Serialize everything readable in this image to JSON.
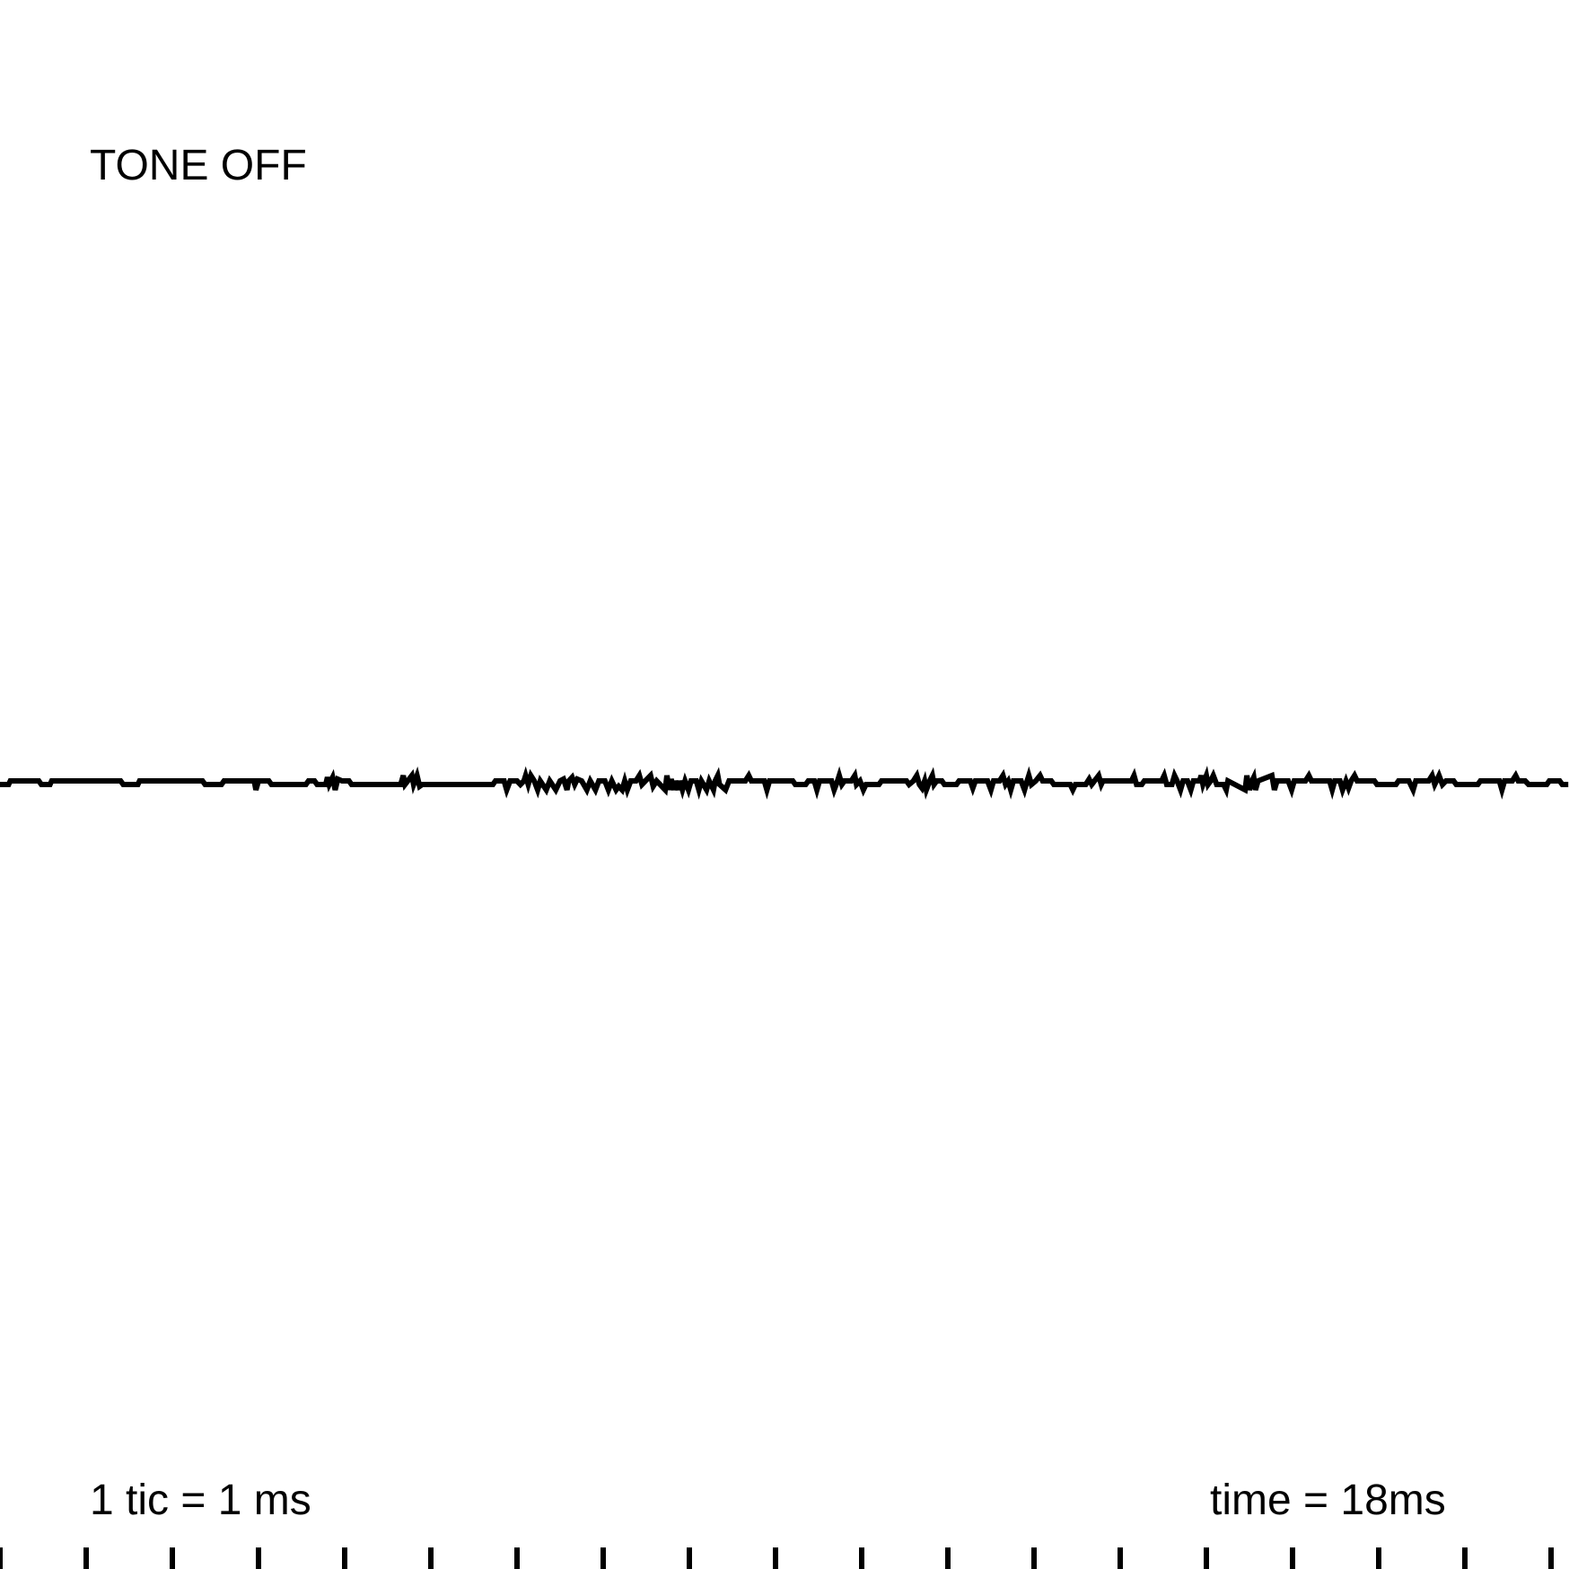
{
  "status_label": "TONE OFF",
  "scale_label": "1 tic = 1 ms",
  "time_label": "time = 18ms",
  "colors": {
    "trace": "#000000",
    "background": "#ffffff"
  },
  "chart_data": {
    "type": "line",
    "x_unit": "ms",
    "xlim": [
      0,
      18.2
    ],
    "ylim": [
      -1,
      1
    ],
    "tick_interval_ms": 1,
    "tick_count": 19,
    "series": [
      {
        "values": [
          [
            0.0,
            -0.05
          ],
          [
            0.1,
            -0.05
          ],
          [
            0.12,
            0.05
          ],
          [
            0.45,
            0.05
          ],
          [
            0.48,
            -0.05
          ],
          [
            0.58,
            -0.05
          ],
          [
            0.6,
            0.05
          ],
          [
            1.4,
            0.05
          ],
          [
            1.43,
            -0.05
          ],
          [
            1.6,
            -0.05
          ],
          [
            1.62,
            0.05
          ],
          [
            2.35,
            0.05
          ],
          [
            2.38,
            -0.05
          ],
          [
            2.57,
            -0.05
          ],
          [
            2.6,
            0.05
          ],
          [
            2.95,
            0.05
          ],
          [
            2.97,
            -0.2
          ],
          [
            3.0,
            0.05
          ],
          [
            3.12,
            0.05
          ],
          [
            3.15,
            -0.05
          ],
          [
            3.55,
            -0.05
          ],
          [
            3.58,
            0.05
          ],
          [
            3.65,
            0.05
          ],
          [
            3.68,
            -0.05
          ],
          [
            3.78,
            -0.05
          ],
          [
            3.8,
            0.15
          ],
          [
            3.82,
            -0.05
          ],
          [
            3.86,
            0.15
          ],
          [
            3.89,
            -0.2
          ],
          [
            3.92,
            0.1
          ],
          [
            3.97,
            0.05
          ],
          [
            4.05,
            0.05
          ],
          [
            4.08,
            -0.05
          ],
          [
            4.65,
            -0.05
          ],
          [
            4.68,
            0.2
          ],
          [
            4.7,
            -0.05
          ],
          [
            4.78,
            0.2
          ],
          [
            4.8,
            -0.05
          ],
          [
            4.84,
            0.2
          ],
          [
            4.87,
            -0.1
          ],
          [
            4.9,
            -0.05
          ],
          [
            5.72,
            -0.05
          ],
          [
            5.75,
            0.05
          ],
          [
            5.85,
            0.05
          ],
          [
            5.88,
            -0.2
          ],
          [
            5.92,
            0.05
          ],
          [
            6.0,
            0.05
          ],
          [
            6.04,
            -0.05
          ],
          [
            6.08,
            0.05
          ],
          [
            6.1,
            0.2
          ],
          [
            6.13,
            -0.05
          ],
          [
            6.16,
            0.2
          ],
          [
            6.2,
            0.05
          ],
          [
            6.24,
            -0.2
          ],
          [
            6.27,
            0.05
          ],
          [
            6.34,
            -0.2
          ],
          [
            6.38,
            0.05
          ],
          [
            6.45,
            -0.2
          ],
          [
            6.5,
            0.05
          ],
          [
            6.54,
            0.1
          ],
          [
            6.58,
            -0.2
          ],
          [
            6.6,
            0.05
          ],
          [
            6.64,
            0.15
          ],
          [
            6.67,
            -0.05
          ],
          [
            6.7,
            0.1
          ],
          [
            6.75,
            0.05
          ],
          [
            6.81,
            -0.2
          ],
          [
            6.85,
            0.05
          ],
          [
            6.91,
            -0.2
          ],
          [
            6.95,
            0.05
          ],
          [
            7.02,
            0.05
          ],
          [
            7.06,
            -0.2
          ],
          [
            7.1,
            0.05
          ],
          [
            7.15,
            -0.2
          ],
          [
            7.18,
            -0.1
          ],
          [
            7.22,
            -0.2
          ],
          [
            7.25,
            0.05
          ],
          [
            7.28,
            -0.2
          ],
          [
            7.32,
            0.05
          ],
          [
            7.38,
            0.05
          ],
          [
            7.42,
            0.2
          ],
          [
            7.45,
            -0.05
          ],
          [
            7.49,
            0.05
          ],
          [
            7.55,
            0.2
          ],
          [
            7.58,
            -0.1
          ],
          [
            7.62,
            0.05
          ],
          [
            7.72,
            -0.2
          ],
          [
            7.74,
            0.2
          ],
          [
            7.77,
            -0.2
          ],
          [
            7.79,
            0.1
          ],
          [
            7.82,
            -0.2
          ],
          [
            7.84,
            0.05
          ],
          [
            7.87,
            -0.2
          ],
          [
            7.89,
            0.05
          ],
          [
            7.92,
            -0.2
          ],
          [
            7.95,
            0.05
          ],
          [
            7.99,
            -0.2
          ],
          [
            8.02,
            0.05
          ],
          [
            8.08,
            0.05
          ],
          [
            8.11,
            -0.2
          ],
          [
            8.14,
            0.05
          ],
          [
            8.2,
            -0.2
          ],
          [
            8.23,
            0.05
          ],
          [
            8.28,
            -0.2
          ],
          [
            8.3,
            0.05
          ],
          [
            8.33,
            0.2
          ],
          [
            8.35,
            -0.05
          ],
          [
            8.42,
            -0.2
          ],
          [
            8.46,
            0.05
          ],
          [
            8.65,
            0.05
          ],
          [
            8.69,
            0.2
          ],
          [
            8.72,
            0.05
          ],
          [
            8.87,
            0.05
          ],
          [
            8.9,
            -0.2
          ],
          [
            8.93,
            0.05
          ],
          [
            9.2,
            0.05
          ],
          [
            9.23,
            -0.05
          ],
          [
            9.35,
            -0.05
          ],
          [
            9.38,
            0.05
          ],
          [
            9.45,
            0.05
          ],
          [
            9.48,
            -0.2
          ],
          [
            9.51,
            0.05
          ],
          [
            9.65,
            0.05
          ],
          [
            9.68,
            -0.2
          ],
          [
            9.72,
            0.05
          ],
          [
            9.74,
            0.2
          ],
          [
            9.77,
            -0.05
          ],
          [
            9.8,
            0.05
          ],
          [
            9.88,
            0.05
          ],
          [
            9.92,
            0.2
          ],
          [
            9.94,
            -0.05
          ],
          [
            9.98,
            0.05
          ],
          [
            10.02,
            -0.2
          ],
          [
            10.05,
            -0.05
          ],
          [
            10.2,
            -0.05
          ],
          [
            10.23,
            0.05
          ],
          [
            10.52,
            0.05
          ],
          [
            10.55,
            -0.05
          ],
          [
            10.6,
            0.05
          ],
          [
            10.64,
            0.2
          ],
          [
            10.67,
            -0.05
          ],
          [
            10.7,
            -0.15
          ],
          [
            10.73,
            0.05
          ],
          [
            10.75,
            -0.2
          ],
          [
            10.79,
            0.05
          ],
          [
            10.82,
            0.2
          ],
          [
            10.84,
            -0.05
          ],
          [
            10.87,
            0.05
          ],
          [
            10.93,
            0.05
          ],
          [
            10.96,
            -0.05
          ],
          [
            11.1,
            -0.05
          ],
          [
            11.13,
            0.05
          ],
          [
            11.26,
            0.05
          ],
          [
            11.29,
            -0.15
          ],
          [
            11.32,
            0.05
          ],
          [
            11.46,
            0.05
          ],
          [
            11.5,
            -0.2
          ],
          [
            11.53,
            0.05
          ],
          [
            11.6,
            0.05
          ],
          [
            11.64,
            0.2
          ],
          [
            11.67,
            -0.05
          ],
          [
            11.7,
            0.05
          ],
          [
            11.73,
            -0.2
          ],
          [
            11.76,
            0.05
          ],
          [
            11.85,
            0.05
          ],
          [
            11.89,
            -0.2
          ],
          [
            11.92,
            0.05
          ],
          [
            11.94,
            0.2
          ],
          [
            11.97,
            -0.05
          ],
          [
            12.02,
            0.05
          ],
          [
            12.07,
            0.2
          ],
          [
            12.1,
            0.05
          ],
          [
            12.2,
            0.05
          ],
          [
            12.23,
            -0.05
          ],
          [
            12.42,
            -0.05
          ],
          [
            12.45,
            -0.2
          ],
          [
            12.48,
            -0.05
          ],
          [
            12.6,
            -0.05
          ],
          [
            12.64,
            0.1
          ],
          [
            12.67,
            -0.05
          ],
          [
            12.75,
            0.2
          ],
          [
            12.78,
            -0.05
          ],
          [
            12.8,
            0.05
          ],
          [
            13.13,
            0.05
          ],
          [
            13.16,
            0.2
          ],
          [
            13.19,
            -0.05
          ],
          [
            13.25,
            -0.05
          ],
          [
            13.28,
            0.05
          ],
          [
            13.48,
            0.05
          ],
          [
            13.51,
            0.2
          ],
          [
            13.54,
            -0.05
          ],
          [
            13.6,
            -0.05
          ],
          [
            13.63,
            0.2
          ],
          [
            13.66,
            0.05
          ],
          [
            13.7,
            -0.2
          ],
          [
            13.73,
            0.05
          ],
          [
            13.78,
            0.05
          ],
          [
            13.82,
            -0.2
          ],
          [
            13.85,
            0.05
          ],
          [
            13.92,
            0.05
          ],
          [
            13.94,
            0.2
          ],
          [
            13.96,
            -0.05
          ],
          [
            14.0,
            0.2
          ],
          [
            14.02,
            -0.05
          ],
          [
            14.05,
            0.05
          ],
          [
            14.08,
            0.2
          ],
          [
            14.12,
            -0.05
          ],
          [
            14.2,
            -0.05
          ],
          [
            14.23,
            -0.2
          ],
          [
            14.25,
            0.05
          ],
          [
            14.45,
            -0.2
          ],
          [
            14.47,
            0.2
          ],
          [
            14.5,
            -0.2
          ],
          [
            14.53,
            0.05
          ],
          [
            14.55,
            0.15
          ],
          [
            14.57,
            -0.2
          ],
          [
            14.6,
            0.05
          ],
          [
            14.76,
            0.2
          ],
          [
            14.79,
            -0.2
          ],
          [
            14.82,
            0.05
          ],
          [
            14.95,
            0.05
          ],
          [
            14.99,
            -0.2
          ],
          [
            15.02,
            0.05
          ],
          [
            15.15,
            0.05
          ],
          [
            15.19,
            0.2
          ],
          [
            15.22,
            0.05
          ],
          [
            15.43,
            0.05
          ],
          [
            15.46,
            -0.2
          ],
          [
            15.49,
            0.05
          ],
          [
            15.55,
            0.05
          ],
          [
            15.58,
            -0.2
          ],
          [
            15.62,
            0.05
          ],
          [
            15.65,
            -0.15
          ],
          [
            15.68,
            0.05
          ],
          [
            15.72,
            0.2
          ],
          [
            15.75,
            0.05
          ],
          [
            15.95,
            0.05
          ],
          [
            15.98,
            -0.05
          ],
          [
            16.2,
            -0.05
          ],
          [
            16.23,
            0.05
          ],
          [
            16.35,
            0.05
          ],
          [
            16.4,
            -0.2
          ],
          [
            16.43,
            0.05
          ],
          [
            16.58,
            0.05
          ],
          [
            16.62,
            0.2
          ],
          [
            16.65,
            -0.05
          ],
          [
            16.7,
            0.2
          ],
          [
            16.74,
            -0.05
          ],
          [
            16.78,
            0.05
          ],
          [
            16.87,
            0.05
          ],
          [
            16.9,
            -0.05
          ],
          [
            17.15,
            -0.05
          ],
          [
            17.18,
            0.05
          ],
          [
            17.4,
            0.05
          ],
          [
            17.43,
            -0.2
          ],
          [
            17.46,
            0.05
          ],
          [
            17.55,
            0.05
          ],
          [
            17.59,
            0.2
          ],
          [
            17.62,
            0.05
          ],
          [
            17.7,
            0.05
          ],
          [
            17.74,
            -0.05
          ],
          [
            17.95,
            -0.05
          ],
          [
            17.98,
            0.05
          ],
          [
            18.1,
            0.05
          ],
          [
            18.13,
            -0.05
          ],
          [
            18.2,
            -0.05
          ]
        ]
      }
    ]
  }
}
